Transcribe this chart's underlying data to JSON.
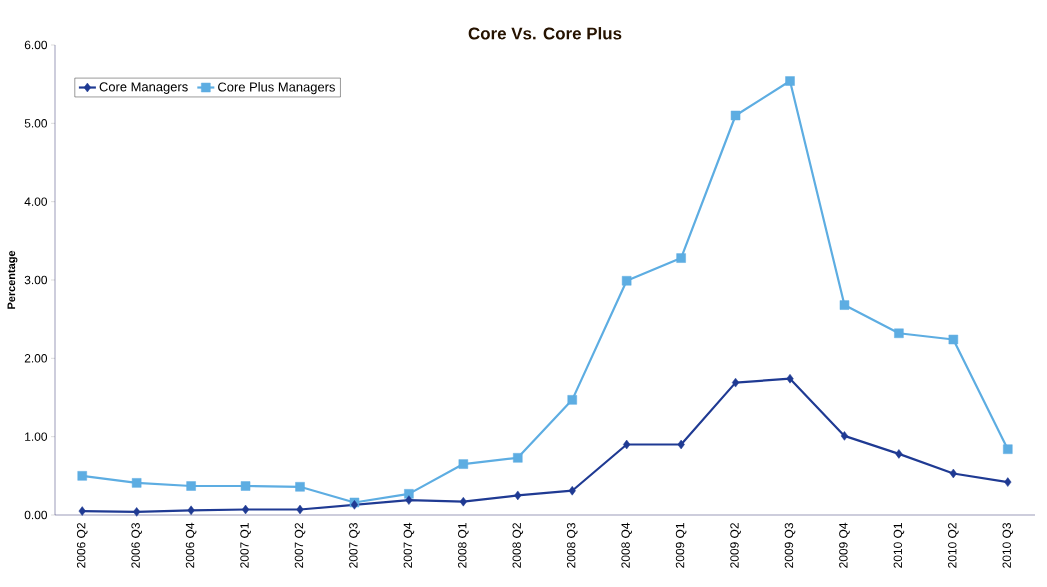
{
  "chart_data": {
    "type": "line",
    "title": "Core Vs. Core Plus",
    "ylabel": "Percentage",
    "categories": [
      "2006 Q2",
      "2006 Q3",
      "2006 Q4",
      "2007 Q1",
      "2007 Q2",
      "2007 Q3",
      "2007 Q4",
      "2008 Q1",
      "2008 Q2",
      "2008 Q3",
      "2008 Q4",
      "2009 Q1",
      "2009 Q2",
      "2009 Q3",
      "2009 Q4",
      "2010 Q1",
      "2010 Q2",
      "2010 Q3"
    ],
    "series": [
      {
        "name": "Core Managers",
        "color": "#1f3a93",
        "marker": "diamond",
        "values": [
          0.05,
          0.04,
          0.06,
          0.07,
          0.07,
          0.13,
          0.19,
          0.17,
          0.25,
          0.31,
          0.9,
          0.9,
          1.69,
          1.74,
          1.01,
          0.78,
          0.53,
          0.42
        ]
      },
      {
        "name": "Core Plus Managers",
        "color": "#5dade2",
        "marker": "square",
        "values": [
          0.5,
          0.41,
          0.37,
          0.37,
          0.36,
          0.16,
          0.27,
          0.65,
          0.73,
          1.47,
          2.99,
          3.28,
          5.1,
          5.54,
          2.68,
          2.32,
          2.24,
          0.84
        ]
      }
    ],
    "ylim": [
      0,
      6
    ],
    "yticks": [
      {
        "value": 0,
        "label": "0.00"
      },
      {
        "value": 1,
        "label": "1.00"
      },
      {
        "value": 2,
        "label": "2.00"
      },
      {
        "value": 3,
        "label": "3.00"
      },
      {
        "value": 4,
        "label": "4.00"
      },
      {
        "value": 5,
        "label": "5.00"
      },
      {
        "value": 6,
        "label": "6.00"
      }
    ],
    "legend": "top left",
    "grid": false,
    "line_style": "solid"
  }
}
